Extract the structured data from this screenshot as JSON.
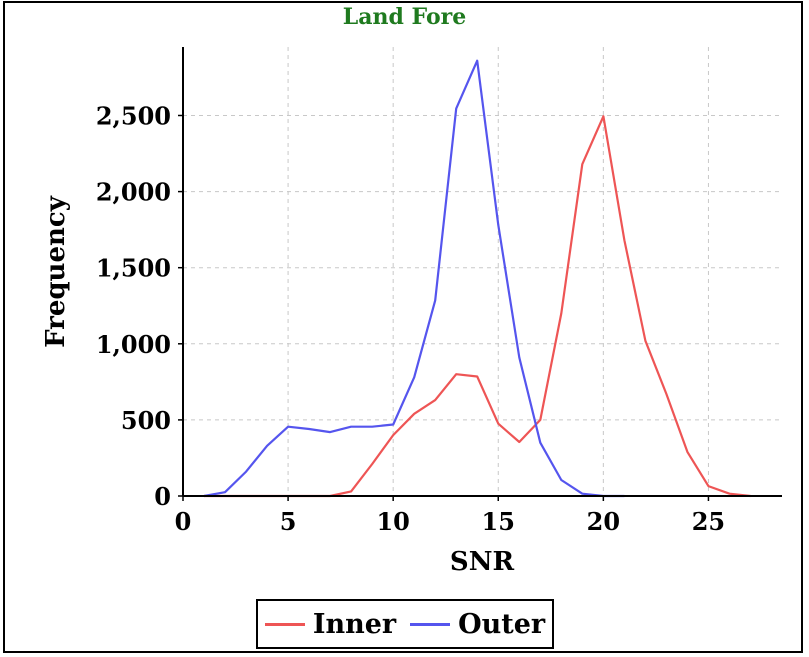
{
  "chart_data": {
    "type": "line",
    "title": "Land Fore",
    "xlabel": "SNR",
    "ylabel": "Frequency",
    "xlim": [
      0,
      28.5
    ],
    "ylim": [
      0,
      2950
    ],
    "xticks": [
      0,
      5,
      10,
      15,
      20,
      25
    ],
    "yticks": [
      0,
      500,
      1000,
      1500,
      2000,
      2500
    ],
    "ytick_labels": [
      "0",
      "500",
      "1,000",
      "1,500",
      "2,000",
      "2,500"
    ],
    "grid": true,
    "legend_position": "bottom",
    "series": [
      {
        "name": "Inner",
        "color": "#ee5555",
        "x": [
          1,
          2,
          3,
          4,
          5,
          6,
          7,
          8,
          9,
          10,
          11,
          12,
          13,
          14,
          15,
          16,
          17,
          18,
          19,
          20,
          21,
          22,
          23,
          24,
          25,
          26,
          27
        ],
        "y": [
          0,
          0,
          0,
          0,
          0,
          0,
          0,
          30,
          210,
          400,
          540,
          630,
          800,
          785,
          475,
          355,
          500,
          1200,
          2180,
          2495,
          1680,
          1020,
          670,
          290,
          65,
          15,
          0
        ]
      },
      {
        "name": "Outer",
        "color": "#5555ee",
        "x": [
          1,
          2,
          3,
          4,
          5,
          6,
          7,
          8,
          9,
          10,
          11,
          12,
          13,
          14,
          15,
          16,
          17,
          18,
          19,
          20,
          21
        ],
        "y": [
          0,
          25,
          160,
          330,
          455,
          440,
          420,
          455,
          455,
          470,
          780,
          1285,
          2545,
          2860,
          1780,
          910,
          350,
          105,
          15,
          0,
          0
        ]
      }
    ]
  }
}
